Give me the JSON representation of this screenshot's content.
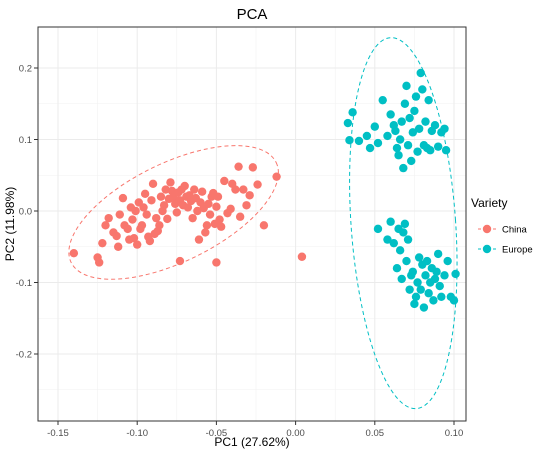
{
  "chart_data": {
    "type": "scatter",
    "title": "PCA",
    "xlabel": "PC1 (27.62%)",
    "ylabel": "PC2 (11.98%)",
    "xlim": [
      -0.16,
      0.11
    ],
    "ylim": [
      -0.29,
      0.25
    ],
    "x_ticks": [
      -0.15,
      -0.1,
      -0.05,
      0.0,
      0.05,
      0.1
    ],
    "x_tick_labels": [
      "-0.15",
      "-0.10",
      "-0.05",
      "0.00",
      "0.05",
      "0.10"
    ],
    "y_ticks": [
      -0.2,
      -0.1,
      0.0,
      0.1,
      0.2
    ],
    "y_tick_labels": [
      "-0.2",
      "-0.1",
      "0.0",
      "0.1",
      "0.2"
    ],
    "grid": true,
    "legend": {
      "title": "Variety",
      "position": "right"
    },
    "series": [
      {
        "name": "China",
        "color": "#F8766D",
        "points": [
          [
            -0.14,
            -0.059
          ],
          [
            -0.124,
            -0.072
          ],
          [
            -0.125,
            -0.065
          ],
          [
            -0.122,
            -0.045
          ],
          [
            -0.12,
            -0.02
          ],
          [
            -0.118,
            -0.01
          ],
          [
            -0.115,
            -0.03
          ],
          [
            -0.113,
            -0.035
          ],
          [
            -0.112,
            -0.05
          ],
          [
            -0.111,
            -0.005
          ],
          [
            -0.109,
            0.018
          ],
          [
            -0.108,
            -0.02
          ],
          [
            -0.106,
            -0.025
          ],
          [
            -0.105,
            -0.04
          ],
          [
            -0.104,
            0.005
          ],
          [
            -0.103,
            -0.012
          ],
          [
            -0.102,
            -0.038
          ],
          [
            -0.101,
            0.0
          ],
          [
            -0.1,
            -0.047
          ],
          [
            -0.099,
            0.012
          ],
          [
            -0.098,
            -0.025
          ],
          [
            -0.097,
            -0.02
          ],
          [
            -0.096,
            0.005
          ],
          [
            -0.095,
            0.024
          ],
          [
            -0.094,
            -0.005
          ],
          [
            -0.093,
            -0.036
          ],
          [
            -0.092,
            -0.042
          ],
          [
            -0.091,
            0.015
          ],
          [
            -0.09,
            0.038
          ],
          [
            -0.089,
            -0.032
          ],
          [
            -0.088,
            -0.01
          ],
          [
            -0.087,
            -0.028
          ],
          [
            -0.086,
            -0.02
          ],
          [
            -0.085,
            0.02
          ],
          [
            -0.084,
            0.0
          ],
          [
            -0.083,
            0.008
          ],
          [
            -0.082,
            0.03
          ],
          [
            -0.081,
            -0.011
          ],
          [
            -0.08,
            0.017
          ],
          [
            -0.079,
            0.04
          ],
          [
            -0.078,
            0.028
          ],
          [
            -0.077,
            0.02
          ],
          [
            -0.076,
            0.01
          ],
          [
            -0.075,
            -0.002
          ],
          [
            -0.074,
            0.026
          ],
          [
            -0.073,
            0.015
          ],
          [
            -0.072,
            0.03
          ],
          [
            -0.071,
            0.008
          ],
          [
            -0.07,
            0.035
          ],
          [
            -0.069,
            0.02
          ],
          [
            -0.068,
            0.005
          ],
          [
            -0.067,
            0.022
          ],
          [
            -0.066,
            0.014
          ],
          [
            -0.065,
            -0.01
          ],
          [
            -0.064,
            0.03
          ],
          [
            -0.063,
            0.018
          ],
          [
            -0.062,
            0.0
          ],
          [
            -0.061,
            -0.04
          ],
          [
            -0.06,
            0.012
          ],
          [
            -0.059,
            0.027
          ],
          [
            -0.058,
            0.004
          ],
          [
            -0.057,
            -0.03
          ],
          [
            -0.056,
            -0.02
          ],
          [
            -0.055,
            0.01
          ],
          [
            -0.054,
            -0.005
          ],
          [
            -0.053,
            0.02
          ],
          [
            -0.052,
            0.025
          ],
          [
            -0.051,
            -0.018
          ],
          [
            -0.05,
            0.006
          ],
          [
            -0.049,
            0.02
          ],
          [
            -0.048,
            -0.012
          ],
          [
            -0.047,
            -0.022
          ],
          [
            -0.045,
            0.042
          ],
          [
            -0.043,
            -0.003
          ],
          [
            -0.041,
            0.003
          ],
          [
            -0.04,
            0.038
          ],
          [
            -0.038,
            0.03
          ],
          [
            -0.036,
            0.062
          ],
          [
            -0.035,
            -0.008
          ],
          [
            -0.033,
            0.03
          ],
          [
            -0.031,
            0.008
          ],
          [
            -0.029,
            0.022
          ],
          [
            -0.027,
            0.061
          ],
          [
            -0.024,
            0.037
          ],
          [
            -0.012,
            0.048
          ],
          [
            -0.05,
            -0.072
          ],
          [
            -0.073,
            -0.07
          ],
          [
            -0.02,
            -0.02
          ],
          [
            0.004,
            -0.064
          ]
        ]
      },
      {
        "name": "Europe",
        "color": "#00BFC4",
        "points": [
          [
            0.033,
            0.123
          ],
          [
            0.034,
            0.099
          ],
          [
            0.036,
            0.138
          ],
          [
            0.04,
            0.098
          ],
          [
            0.045,
            0.105
          ],
          [
            0.047,
            0.088
          ],
          [
            0.05,
            0.118
          ],
          [
            0.052,
            0.095
          ],
          [
            0.055,
            0.155
          ],
          [
            0.058,
            0.105
          ],
          [
            0.06,
            0.135
          ],
          [
            0.062,
            0.12
          ],
          [
            0.063,
            0.112
          ],
          [
            0.064,
            0.088
          ],
          [
            0.065,
            0.078
          ],
          [
            0.066,
            0.1
          ],
          [
            0.067,
            0.125
          ],
          [
            0.068,
            0.06
          ],
          [
            0.069,
            0.15
          ],
          [
            0.07,
            0.175
          ],
          [
            0.071,
            0.092
          ],
          [
            0.072,
            0.13
          ],
          [
            0.073,
            0.07
          ],
          [
            0.074,
            0.11
          ],
          [
            0.075,
            0.14
          ],
          [
            0.076,
            0.16
          ],
          [
            0.077,
            0.083
          ],
          [
            0.078,
            0.115
          ],
          [
            0.079,
            0.193
          ],
          [
            0.08,
            0.17
          ],
          [
            0.081,
            0.092
          ],
          [
            0.082,
            0.125
          ],
          [
            0.083,
            0.088
          ],
          [
            0.084,
            0.155
          ],
          [
            0.085,
            0.085
          ],
          [
            0.086,
            0.112
          ],
          [
            0.088,
            0.12
          ],
          [
            0.09,
            0.09
          ],
          [
            0.092,
            0.11
          ],
          [
            0.094,
            0.115
          ],
          [
            0.095,
            0.085
          ],
          [
            0.052,
            -0.025
          ],
          [
            0.058,
            -0.04
          ],
          [
            0.06,
            -0.015
          ],
          [
            0.062,
            -0.045
          ],
          [
            0.064,
            -0.08
          ],
          [
            0.065,
            -0.025
          ],
          [
            0.066,
            -0.055
          ],
          [
            0.067,
            -0.095
          ],
          [
            0.068,
            -0.03
          ],
          [
            0.069,
            -0.018
          ],
          [
            0.07,
            -0.07
          ],
          [
            0.071,
            -0.04
          ],
          [
            0.072,
            -0.11
          ],
          [
            0.073,
            -0.09
          ],
          [
            0.074,
            -0.085
          ],
          [
            0.075,
            -0.13
          ],
          [
            0.076,
            -0.12
          ],
          [
            0.077,
            -0.1
          ],
          [
            0.078,
            -0.065
          ],
          [
            0.079,
            -0.11
          ],
          [
            0.08,
            -0.075
          ],
          [
            0.081,
            -0.135
          ],
          [
            0.082,
            -0.09
          ],
          [
            0.083,
            -0.07
          ],
          [
            0.084,
            -0.115
          ],
          [
            0.085,
            -0.1
          ],
          [
            0.086,
            -0.08
          ],
          [
            0.087,
            -0.125
          ],
          [
            0.088,
            -0.095
          ],
          [
            0.089,
            -0.085
          ],
          [
            0.09,
            -0.06
          ],
          [
            0.091,
            -0.105
          ],
          [
            0.092,
            -0.12
          ],
          [
            0.094,
            -0.09
          ],
          [
            0.096,
            -0.07
          ],
          [
            0.098,
            -0.12
          ],
          [
            0.1,
            -0.125
          ],
          [
            0.101,
            -0.088
          ]
        ]
      }
    ],
    "ellipses": [
      {
        "series": "China",
        "center": [
          -0.077,
          -0.002
        ],
        "radius_x": 0.072,
        "radius_y": 0.069,
        "angle_deg": 26,
        "style": "dashed"
      },
      {
        "series": "Europe",
        "center": [
          0.068,
          -0.017
        ],
        "radius_x": 0.033,
        "radius_y": 0.26,
        "angle_deg": 4,
        "style": "dashed"
      }
    ]
  }
}
